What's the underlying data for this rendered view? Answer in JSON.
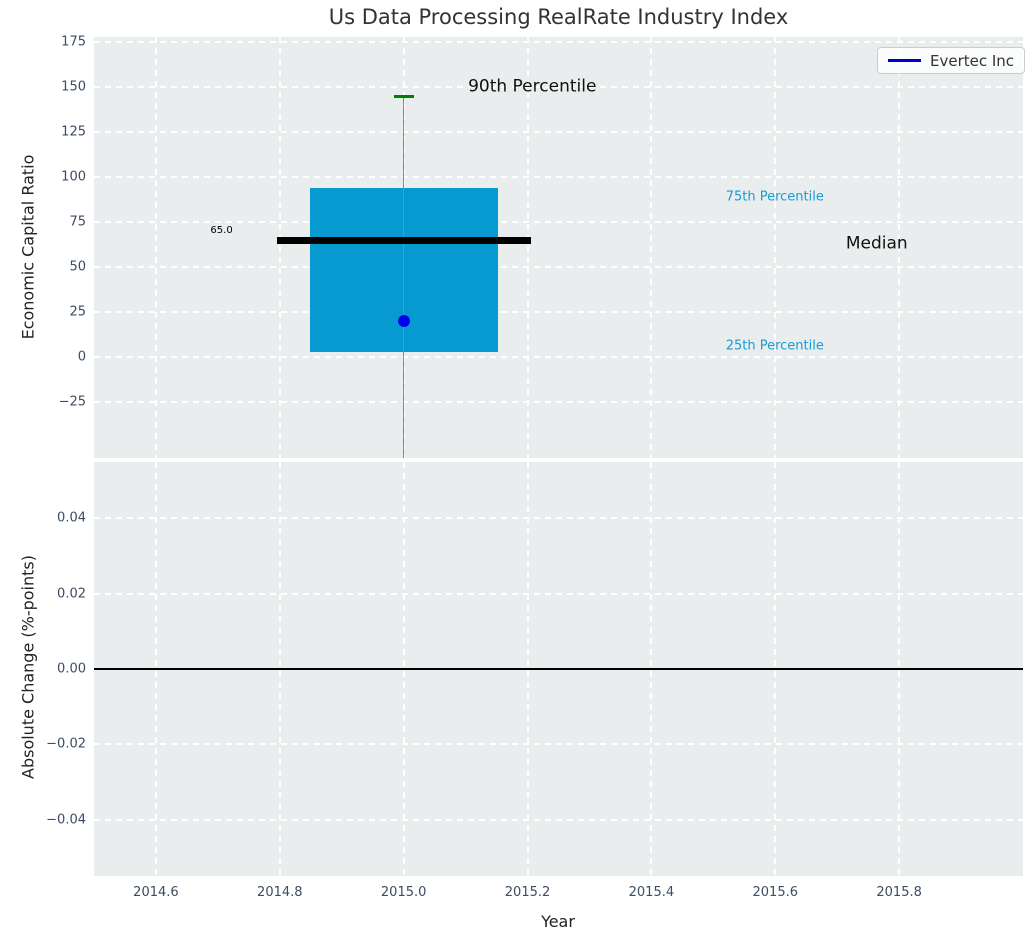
{
  "title": "Us Data Processing RealRate Industry Index",
  "legend": {
    "label": "Evertec Inc",
    "position": "upper right"
  },
  "colors": {
    "axes_bg": "#e9edee",
    "grid": "#ffffff",
    "tick_label": "#3d4c63",
    "title": "#333333",
    "box_fill": "#079ad1",
    "median_line": "#000000",
    "whisker": "#888888",
    "cap": "#008000",
    "point": "#0000ee",
    "legend_line": "#0000cc",
    "percentile_label": "#199bd3",
    "zero_line": "#000000"
  },
  "chart_data": [
    {
      "type": "boxplot",
      "title": "Us Data Processing RealRate Industry Index",
      "ylabel": "Economic Capital Ratio",
      "xlim": [
        2014.5,
        2016.0
      ],
      "ylim": [
        -56,
        178
      ],
      "grid": "white dashed, on",
      "yticks": [
        {
          "v": 175,
          "label": "175"
        },
        {
          "v": 150,
          "label": "150"
        },
        {
          "v": 125,
          "label": "125"
        },
        {
          "v": 100,
          "label": "100"
        },
        {
          "v": 75,
          "label": "75"
        },
        {
          "v": 50,
          "label": "50"
        },
        {
          "v": 25,
          "label": "25"
        },
        {
          "v": 0,
          "label": "0"
        },
        {
          "v": -25,
          "label": "−25"
        }
      ],
      "xticks": [
        {
          "v": 2014.6,
          "label": "2014.6"
        },
        {
          "v": 2014.8,
          "label": "2014.8"
        },
        {
          "v": 2015.0,
          "label": "2015.0"
        },
        {
          "v": 2015.2,
          "label": "2015.2"
        },
        {
          "v": 2015.4,
          "label": "2015.4"
        },
        {
          "v": 2015.6,
          "label": "2015.6"
        },
        {
          "v": 2015.8,
          "label": "2015.8"
        }
      ],
      "box": {
        "x": 2015.0,
        "q1": 3,
        "median": 65.0,
        "q3": 94,
        "p90": 145,
        "whisker_low": "clipped below axis bottom",
        "box_halfwidth": 0.152,
        "median_halfwidth": 0.205,
        "cap_halfwidth": 0.016
      },
      "point": {
        "x": 2015.0,
        "y": 20,
        "series": "Evertec Inc"
      },
      "annotations": [
        {
          "text": "65.0",
          "x": 2014.688,
          "y": 70,
          "size": 10,
          "color": "#000000"
        },
        {
          "text": "90th Percentile",
          "x": 2015.104,
          "y": 150,
          "size": 17,
          "color": "#111111"
        },
        {
          "text": "75th Percentile",
          "x": 2015.52,
          "y": 89,
          "size": 13,
          "color": "#199bd3"
        },
        {
          "text": "Median",
          "x": 2015.714,
          "y": 63,
          "size": 17,
          "color": "#111111"
        },
        {
          "text": "25th Percentile",
          "x": 2015.52,
          "y": 6,
          "size": 13,
          "color": "#199bd3"
        }
      ]
    },
    {
      "type": "line",
      "ylabel": "Absolute Change (%-points)",
      "xlabel": "Year",
      "xlim": [
        2014.5,
        2016.0
      ],
      "ylim": [
        -0.055,
        0.055
      ],
      "grid": "white dashed, on",
      "yticks": [
        {
          "v": 0.04,
          "label": "0.04"
        },
        {
          "v": 0.02,
          "label": "0.02"
        },
        {
          "v": 0.0,
          "label": "0.00"
        },
        {
          "v": -0.02,
          "label": "−0.02"
        },
        {
          "v": -0.04,
          "label": "−0.04"
        }
      ],
      "xticks": [
        {
          "v": 2014.6,
          "label": "2014.6"
        },
        {
          "v": 2014.8,
          "label": "2014.8"
        },
        {
          "v": 2015.0,
          "label": "2015.0"
        },
        {
          "v": 2015.2,
          "label": "2015.2"
        },
        {
          "v": 2015.4,
          "label": "2015.4"
        },
        {
          "v": 2015.6,
          "label": "2015.6"
        },
        {
          "v": 2015.8,
          "label": "2015.8"
        }
      ],
      "zero_line_y": 0.0,
      "series": []
    }
  ]
}
